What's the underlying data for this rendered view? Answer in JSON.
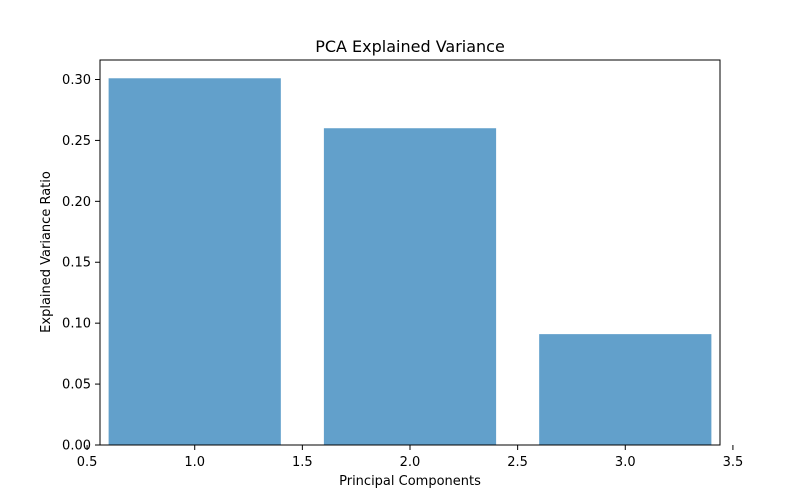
{
  "chart_data": {
    "type": "bar",
    "title": "PCA Explained Variance",
    "xlabel": "Principal Components",
    "ylabel": "Explained Variance Ratio",
    "x": [
      1,
      2,
      3
    ],
    "values": [
      0.301,
      0.26,
      0.091
    ],
    "bar_width": 0.8,
    "xlim": [
      0.56,
      3.44
    ],
    "ylim": [
      0,
      0.316
    ],
    "xticks": [
      0.5,
      1.0,
      1.5,
      2.0,
      2.5,
      3.0,
      3.5
    ],
    "xtick_labels": [
      "0.5",
      "1.0",
      "1.5",
      "2.0",
      "2.5",
      "3.0",
      "3.5"
    ],
    "yticks": [
      0.0,
      0.05,
      0.1,
      0.15,
      0.2,
      0.25,
      0.3
    ],
    "ytick_labels": [
      "0.00",
      "0.05",
      "0.10",
      "0.15",
      "0.20",
      "0.25",
      "0.30"
    ],
    "bar_color": "#62a0cb",
    "grid": false,
    "legend": "none"
  }
}
